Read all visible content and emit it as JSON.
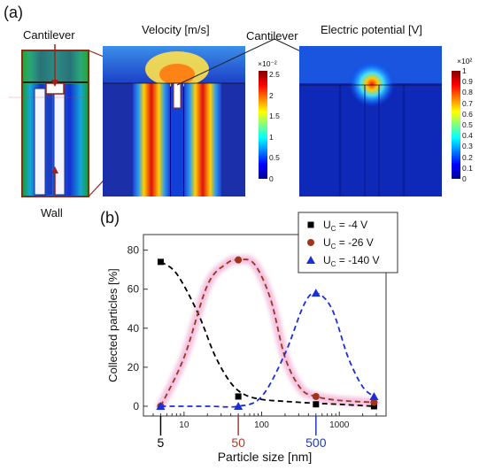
{
  "panel_a": {
    "label": "(a)",
    "cantilever_left": "Cantilever",
    "velocity_title": "Velocity [m/s]",
    "cantilever_mid": "Cantilever",
    "potential_title": "Electric potential [V]",
    "wall": "Wall",
    "velocity_colorbar": {
      "exponent": "×10⁻²",
      "ticks": [
        "2.5",
        "2",
        "1.5",
        "1",
        "0.5",
        "0"
      ]
    },
    "potential_colorbar": {
      "exponent": "×10²",
      "ticks": [
        "1",
        "0.9",
        "0.8",
        "0.7",
        "0.6",
        "0.5",
        "0.4",
        "0.3",
        "0.2",
        "0.1",
        "0"
      ]
    }
  },
  "panel_b": {
    "label": "(b)",
    "highlight_labels": [
      "5",
      "50",
      "500"
    ],
    "highlight_colors": [
      "#000000",
      "#b03a2e",
      "#1f3ab5"
    ]
  },
  "chart_data": {
    "type": "scatter",
    "title": "",
    "xlabel": "Particle size [nm]",
    "ylabel": "Collected particles [%]",
    "xscale": "log",
    "xlim": [
      3,
      4000
    ],
    "ylim": [
      -5,
      88
    ],
    "y_ticks": [
      0,
      20,
      40,
      60,
      80
    ],
    "x_tick_labels": [
      {
        "value": 10,
        "label": "10"
      },
      {
        "value": 100,
        "label": "100"
      },
      {
        "value": 1000,
        "label": "1000"
      }
    ],
    "legend_position": "top-right",
    "series": [
      {
        "name": "U",
        "subscript": "C",
        "value_label": " = -4 V",
        "color": "#000000",
        "marker": "square",
        "x": [
          5,
          50,
          500,
          2800
        ],
        "y": [
          74,
          5,
          1,
          0
        ],
        "curve_x": [
          5,
          8,
          15,
          25,
          40,
          60,
          100,
          200,
          500,
          1000,
          2800
        ],
        "curve_y": [
          74,
          68,
          48,
          26,
          12,
          6,
          3.5,
          2.5,
          1.5,
          1,
          0
        ]
      },
      {
        "name": "U",
        "subscript": "C",
        "value_label": " = -26 V",
        "color": "#a0341c",
        "marker": "circle",
        "x": [
          5,
          50,
          500,
          2800
        ],
        "y": [
          0,
          75,
          5,
          2
        ],
        "curve_x": [
          5,
          10,
          20,
          35,
          50,
          80,
          130,
          200,
          320,
          500,
          1000,
          2800
        ],
        "curve_y": [
          0,
          25,
          62,
          73,
          75,
          73,
          55,
          25,
          9,
          5,
          3,
          2
        ]
      },
      {
        "name": "U",
        "subscript": "C",
        "value_label": " = -140 V",
        "color": "#1a2fd6",
        "marker": "triangle",
        "x": [
          5,
          50,
          500,
          2800
        ],
        "y": [
          0,
          0,
          58,
          5
        ],
        "curve_x": [
          5,
          20,
          50,
          100,
          200,
          350,
          500,
          800,
          1300,
          2000,
          2800
        ],
        "curve_y": [
          0,
          0,
          0,
          5,
          27,
          52,
          58,
          50,
          25,
          10,
          5
        ]
      }
    ]
  }
}
